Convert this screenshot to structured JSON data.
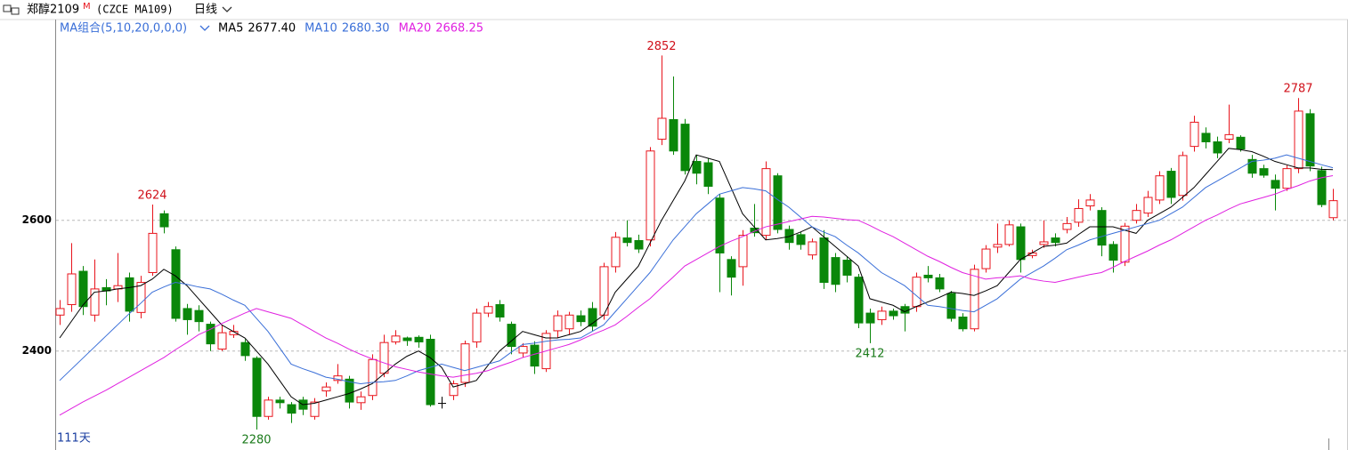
{
  "chart_data": {
    "type": "candlestick",
    "title": "郑醇2109",
    "title_sup": "M",
    "subtitle": "(CZCE MA109)",
    "period": "日线",
    "indicator": "MA组合(5,10,20,0,0,0)",
    "footer": "111天",
    "up_color": "#e8141c",
    "down_color": "#0a870a",
    "ylim": [
      2250,
      2907
    ],
    "yticks": [
      2400,
      2600
    ],
    "grid": true,
    "open": [
      2455,
      2471,
      2522,
      2455,
      2497,
      2495,
      2512,
      2459,
      2520,
      2610,
      2555,
      2465,
      2462,
      2441,
      2403,
      2425,
      2413,
      2389,
      2300,
      2325,
      2318,
      2325,
      2300,
      2339,
      2355,
      2357,
      2321,
      2332,
      2366,
      2414,
      2420,
      2421,
      2418,
      2320,
      2332,
      2352,
      2414,
      2458,
      2471,
      2441,
      2397,
      2409,
      2373,
      2431,
      2434,
      2454,
      2465,
      2455,
      2529,
      2573,
      2569,
      2570,
      2724,
      2754,
      2747,
      2690,
      2688,
      2634,
      2540,
      2529,
      2588,
      2577,
      2668,
      2586,
      2578,
      2547,
      2573,
      2543,
      2539,
      2513,
      2458,
      2448,
      2461,
      2468,
      2468,
      2516,
      2512,
      2488,
      2452,
      2434,
      2526,
      2559,
      2563,
      2590,
      2546,
      2563,
      2573,
      2586,
      2597,
      2622,
      2615,
      2563,
      2536,
      2600,
      2611,
      2631,
      2675,
      2638,
      2713,
      2733,
      2720,
      2724,
      2727,
      2693,
      2679,
      2661,
      2649,
      2679,
      2763,
      2676,
      2604
    ],
    "high": [
      2478,
      2565,
      2530,
      2540,
      2510,
      2550,
      2520,
      2515,
      2624,
      2615,
      2560,
      2472,
      2470,
      2445,
      2440,
      2440,
      2418,
      2392,
      2330,
      2330,
      2322,
      2330,
      2328,
      2352,
      2380,
      2362,
      2338,
      2395,
      2425,
      2432,
      2422,
      2424,
      2425,
      2330,
      2355,
      2416,
      2465,
      2475,
      2478,
      2445,
      2412,
      2415,
      2432,
      2462,
      2460,
      2462,
      2475,
      2535,
      2582,
      2600,
      2578,
      2712,
      2852,
      2820,
      2755,
      2700,
      2695,
      2640,
      2545,
      2585,
      2625,
      2690,
      2672,
      2592,
      2582,
      2572,
      2585,
      2550,
      2545,
      2518,
      2465,
      2468,
      2465,
      2472,
      2520,
      2530,
      2518,
      2492,
      2458,
      2532,
      2562,
      2595,
      2600,
      2595,
      2555,
      2600,
      2580,
      2605,
      2632,
      2640,
      2620,
      2568,
      2596,
      2625,
      2645,
      2675,
      2680,
      2705,
      2760,
      2742,
      2728,
      2777,
      2730,
      2700,
      2685,
      2670,
      2684,
      2787,
      2770,
      2682,
      2648
    ],
    "low": [
      2440,
      2460,
      2455,
      2445,
      2470,
      2475,
      2445,
      2450,
      2515,
      2580,
      2445,
      2425,
      2430,
      2400,
      2400,
      2420,
      2385,
      2280,
      2295,
      2312,
      2290,
      2302,
      2295,
      2330,
      2350,
      2312,
      2310,
      2325,
      2360,
      2410,
      2408,
      2405,
      2315,
      2312,
      2325,
      2345,
      2405,
      2452,
      2445,
      2395,
      2390,
      2365,
      2368,
      2420,
      2425,
      2438,
      2430,
      2448,
      2520,
      2560,
      2550,
      2560,
      2715,
      2700,
      2670,
      2655,
      2640,
      2490,
      2485,
      2500,
      2575,
      2570,
      2580,
      2555,
      2555,
      2540,
      2495,
      2490,
      2505,
      2435,
      2412,
      2440,
      2448,
      2430,
      2460,
      2505,
      2490,
      2445,
      2430,
      2430,
      2520,
      2550,
      2560,
      2520,
      2542,
      2558,
      2560,
      2580,
      2590,
      2615,
      2545,
      2520,
      2530,
      2595,
      2605,
      2625,
      2625,
      2630,
      2705,
      2710,
      2695,
      2718,
      2705,
      2665,
      2665,
      2615,
      2645,
      2672,
      2675,
      2620,
      2600
    ],
    "close": [
      2465,
      2518,
      2468,
      2495,
      2492,
      2500,
      2461,
      2505,
      2580,
      2590,
      2450,
      2448,
      2445,
      2411,
      2428,
      2430,
      2393,
      2300,
      2325,
      2321,
      2305,
      2311,
      2322,
      2345,
      2362,
      2322,
      2330,
      2387,
      2413,
      2423,
      2416,
      2414,
      2318,
      2320,
      2350,
      2411,
      2458,
      2468,
      2452,
      2407,
      2407,
      2377,
      2427,
      2454,
      2455,
      2445,
      2438,
      2529,
      2574,
      2566,
      2556,
      2706,
      2756,
      2706,
      2676,
      2672,
      2652,
      2550,
      2513,
      2577,
      2581,
      2679,
      2586,
      2566,
      2563,
      2567,
      2505,
      2502,
      2516,
      2443,
      2443,
      2461,
      2454,
      2458,
      2513,
      2512,
      2495,
      2450,
      2434,
      2525,
      2556,
      2563,
      2593,
      2540,
      2550,
      2567,
      2566,
      2595,
      2618,
      2631,
      2562,
      2539,
      2591,
      2615,
      2635,
      2668,
      2635,
      2699,
      2750,
      2720,
      2703,
      2731,
      2709,
      2672,
      2669,
      2649,
      2679,
      2767,
      2683,
      2624,
      2630
    ],
    "series": [
      {
        "name": "MA5",
        "legend_value": "2677.40",
        "color": "#000000",
        "values": [
          2420,
          2445,
          2470,
          2490,
          2492,
          2495,
          2497,
          2500,
          2510,
          2525,
          2515,
          2500,
          2480,
          2460,
          2440,
          2430,
          2420,
          2400,
          2380,
          2355,
          2330,
          2318,
          2320,
          2325,
          2330,
          2335,
          2342,
          2350,
          2365,
          2380,
          2392,
          2400,
          2390,
          2375,
          2345,
          2350,
          2355,
          2378,
          2400,
          2415,
          2430,
          2425,
          2420,
          2420,
          2425,
          2430,
          2442,
          2455,
          2490,
          2510,
          2530,
          2565,
          2600,
          2630,
          2660,
          2700,
          2695,
          2690,
          2650,
          2610,
          2590,
          2570,
          2572,
          2575,
          2582,
          2590,
          2575,
          2560,
          2545,
          2530,
          2480,
          2475,
          2470,
          2460,
          2468,
          2475,
          2482,
          2490,
          2488,
          2485,
          2492,
          2500,
          2520,
          2540,
          2550,
          2560,
          2562,
          2565,
          2578,
          2590,
          2590,
          2590,
          2585,
          2580,
          2600,
          2610,
          2620,
          2635,
          2650,
          2670,
          2690,
          2710,
          2708,
          2705,
          2698,
          2690,
          2685,
          2680,
          2680,
          2678,
          2677.4
        ]
      },
      {
        "name": "MA10",
        "legend_value": "2680.30",
        "color": "#3a6fd8",
        "values": [
          2355,
          2372,
          2389,
          2406,
          2423,
          2440,
          2457,
          2473,
          2490,
          2498,
          2505,
          2502,
          2498,
          2495,
          2487,
          2478,
          2470,
          2450,
          2430,
          2405,
          2380,
          2373,
          2367,
          2360,
          2357,
          2353,
          2350,
          2352,
          2353,
          2355,
          2362,
          2370,
          2375,
          2380,
          2375,
          2370,
          2375,
          2380,
          2385,
          2398,
          2410,
          2412,
          2415,
          2417,
          2418,
          2420,
          2430,
          2440,
          2460,
          2480,
          2500,
          2520,
          2545,
          2570,
          2590,
          2610,
          2625,
          2640,
          2645,
          2650,
          2648,
          2645,
          2632,
          2620,
          2605,
          2590,
          2582,
          2575,
          2562,
          2550,
          2535,
          2520,
          2510,
          2500,
          2485,
          2470,
          2468,
          2465,
          2462,
          2460,
          2470,
          2480,
          2495,
          2510,
          2520,
          2530,
          2542,
          2555,
          2562,
          2570,
          2575,
          2580,
          2585,
          2590,
          2595,
          2600,
          2610,
          2620,
          2635,
          2650,
          2660,
          2670,
          2680,
          2690,
          2692,
          2695,
          2700,
          2695,
          2690,
          2685,
          2680.3
        ]
      },
      {
        "name": "MA20",
        "legend_value": "2668.25",
        "color": "#e020e0",
        "values": [
          2302,
          2312,
          2322,
          2331,
          2340,
          2350,
          2360,
          2370,
          2380,
          2390,
          2402,
          2413,
          2425,
          2433,
          2442,
          2450,
          2458,
          2465,
          2460,
          2455,
          2450,
          2440,
          2430,
          2420,
          2412,
          2403,
          2395,
          2388,
          2382,
          2376,
          2372,
          2368,
          2365,
          2362,
          2360,
          2363,
          2366,
          2370,
          2377,
          2383,
          2390,
          2395,
          2400,
          2405,
          2410,
          2417,
          2425,
          2432,
          2440,
          2453,
          2467,
          2480,
          2497,
          2513,
          2530,
          2540,
          2550,
          2560,
          2568,
          2575,
          2583,
          2590,
          2594,
          2598,
          2602,
          2606,
          2605,
          2603,
          2601,
          2600,
          2592,
          2583,
          2575,
          2565,
          2555,
          2545,
          2537,
          2528,
          2520,
          2515,
          2510,
          2512,
          2513,
          2515,
          2510,
          2507,
          2505,
          2509,
          2513,
          2517,
          2520,
          2528,
          2537,
          2545,
          2553,
          2562,
          2570,
          2580,
          2590,
          2600,
          2608,
          2617,
          2625,
          2630,
          2635,
          2640,
          2647,
          2653,
          2660,
          2665,
          2668.25
        ]
      }
    ],
    "annotations": [
      {
        "label": "2624",
        "value": 2624,
        "kind": "high"
      },
      {
        "label": "2280",
        "value": 2280,
        "kind": "low"
      },
      {
        "label": "2852",
        "value": 2852,
        "kind": "high"
      },
      {
        "label": "2412",
        "value": 2412,
        "kind": "low"
      },
      {
        "label": "2787",
        "value": 2787,
        "kind": "high"
      }
    ]
  }
}
